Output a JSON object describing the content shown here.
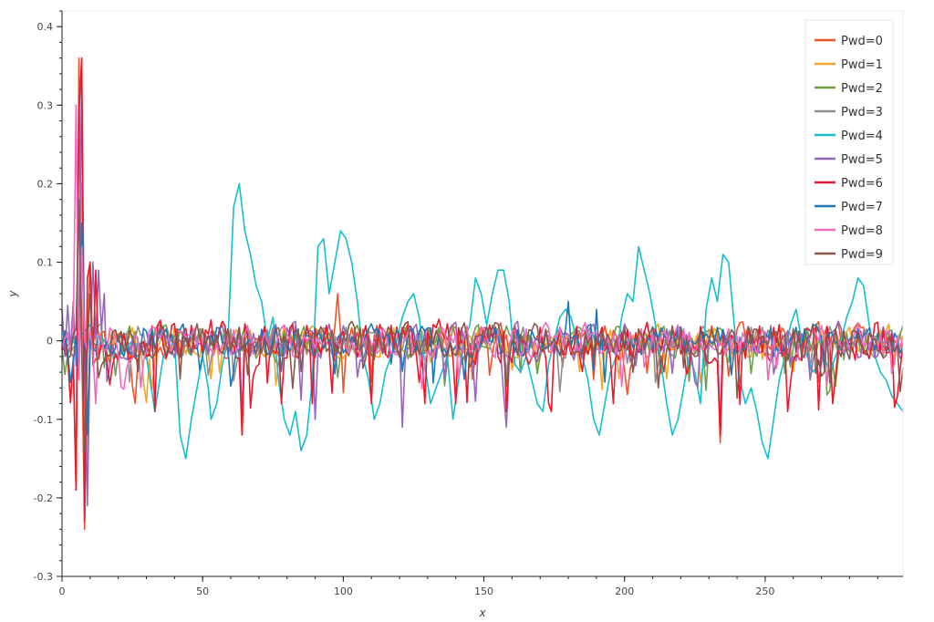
{
  "chart_data": {
    "type": "line",
    "title": "",
    "xlabel": "x",
    "ylabel": "y",
    "xlim": [
      0,
      299
    ],
    "ylim": [
      -0.3,
      0.42
    ],
    "x_ticks": [
      0,
      50,
      100,
      150,
      200,
      250
    ],
    "y_ticks": [
      -0.3,
      -0.2,
      -0.1,
      0,
      0.1,
      0.2,
      0.3,
      0.4
    ],
    "x_tick_labels": [
      "0",
      "50",
      "100",
      "150",
      "200",
      "250"
    ],
    "y_tick_labels": [
      "-0.3",
      "-0.2",
      "-0.1",
      "0",
      "0.1",
      "0.2",
      "0.3",
      "0.4"
    ],
    "grid": false,
    "legend_position": "top-right",
    "legend": [
      "Pwd=0",
      "Pwd=1",
      "Pwd=2",
      "Pwd=3",
      "Pwd=4",
      "Pwd=5",
      "Pwd=6",
      "Pwd=7",
      "Pwd=8",
      "Pwd=9"
    ],
    "series": [
      {
        "name": "Pwd=0",
        "color": "#f0522a",
        "kind": "noise",
        "amp": 0.02,
        "seed": 11,
        "spikes": [
          [
            6,
            0.36
          ],
          [
            8,
            -0.24
          ],
          [
            5,
            -0.19
          ],
          [
            10,
            0.1
          ],
          [
            64,
            -0.12
          ],
          [
            234,
            -0.13
          ],
          [
            98,
            0.06
          ]
        ]
      },
      {
        "name": "Pwd=1",
        "color": "#f5a623",
        "kind": "noise",
        "amp": 0.018,
        "seed": 23,
        "spikes": [
          [
            7,
            0.2
          ],
          [
            9,
            -0.15
          ]
        ]
      },
      {
        "name": "Pwd=2",
        "color": "#6ba04a",
        "kind": "noise",
        "amp": 0.018,
        "seed": 37,
        "spikes": [
          [
            7,
            0.15
          ],
          [
            9,
            -0.12
          ]
        ]
      },
      {
        "name": "Pwd=3",
        "color": "#8f8f8f",
        "kind": "noise",
        "amp": 0.018,
        "seed": 41,
        "spikes": [
          [
            7,
            0.12
          ],
          [
            9,
            -0.1
          ]
        ]
      },
      {
        "name": "Pwd=4",
        "color": "#17becf",
        "kind": "smooth",
        "points": [
          [
            0,
            -0.01
          ],
          [
            5,
            0.0
          ],
          [
            10,
            0.02
          ],
          [
            15,
            0.0
          ],
          [
            20,
            -0.02
          ],
          [
            25,
            0.0
          ],
          [
            30,
            -0.02
          ],
          [
            33,
            -0.09
          ],
          [
            36,
            -0.02
          ],
          [
            40,
            0.0
          ],
          [
            42,
            -0.12
          ],
          [
            44,
            -0.15
          ],
          [
            46,
            -0.1
          ],
          [
            48,
            -0.06
          ],
          [
            50,
            -0.02
          ],
          [
            52,
            -0.06
          ],
          [
            53,
            -0.1
          ],
          [
            55,
            -0.08
          ],
          [
            57,
            -0.03
          ],
          [
            59,
            0.0
          ],
          [
            61,
            0.17
          ],
          [
            63,
            0.2
          ],
          [
            65,
            0.14
          ],
          [
            67,
            0.11
          ],
          [
            69,
            0.07
          ],
          [
            71,
            0.05
          ],
          [
            73,
            0.0
          ],
          [
            75,
            0.03
          ],
          [
            77,
            -0.05
          ],
          [
            79,
            -0.1
          ],
          [
            81,
            -0.12
          ],
          [
            83,
            -0.09
          ],
          [
            85,
            -0.14
          ],
          [
            87,
            -0.12
          ],
          [
            89,
            -0.05
          ],
          [
            91,
            0.12
          ],
          [
            93,
            0.13
          ],
          [
            95,
            0.06
          ],
          [
            97,
            0.1
          ],
          [
            99,
            0.14
          ],
          [
            101,
            0.13
          ],
          [
            103,
            0.1
          ],
          [
            105,
            0.05
          ],
          [
            107,
            -0.02
          ],
          [
            109,
            -0.05
          ],
          [
            111,
            -0.1
          ],
          [
            113,
            -0.08
          ],
          [
            115,
            -0.04
          ],
          [
            117,
            -0.02
          ],
          [
            119,
            0.0
          ],
          [
            121,
            0.03
          ],
          [
            123,
            0.05
          ],
          [
            125,
            0.06
          ],
          [
            127,
            0.03
          ],
          [
            129,
            -0.03
          ],
          [
            131,
            -0.08
          ],
          [
            133,
            -0.06
          ],
          [
            135,
            -0.04
          ],
          [
            137,
            -0.02
          ],
          [
            139,
            -0.1
          ],
          [
            141,
            -0.05
          ],
          [
            143,
            0.0
          ],
          [
            145,
            0.02
          ],
          [
            147,
            0.08
          ],
          [
            149,
            0.06
          ],
          [
            151,
            0.02
          ],
          [
            153,
            0.06
          ],
          [
            155,
            0.09
          ],
          [
            157,
            0.09
          ],
          [
            159,
            0.05
          ],
          [
            161,
            -0.03
          ],
          [
            163,
            -0.04
          ],
          [
            165,
            -0.02
          ],
          [
            167,
            -0.05
          ],
          [
            169,
            -0.08
          ],
          [
            171,
            -0.09
          ],
          [
            173,
            -0.03
          ],
          [
            175,
            0.0
          ],
          [
            177,
            0.03
          ],
          [
            179,
            0.04
          ],
          [
            181,
            0.03
          ],
          [
            183,
            0.0
          ],
          [
            185,
            -0.02
          ],
          [
            187,
            -0.05
          ],
          [
            189,
            -0.1
          ],
          [
            191,
            -0.12
          ],
          [
            193,
            -0.08
          ],
          [
            195,
            -0.04
          ],
          [
            197,
            -0.02
          ],
          [
            199,
            0.03
          ],
          [
            201,
            0.06
          ],
          [
            203,
            0.05
          ],
          [
            205,
            0.12
          ],
          [
            207,
            0.09
          ],
          [
            209,
            0.06
          ],
          [
            211,
            0.02
          ],
          [
            213,
            -0.03
          ],
          [
            215,
            -0.08
          ],
          [
            217,
            -0.12
          ],
          [
            219,
            -0.1
          ],
          [
            221,
            -0.06
          ],
          [
            223,
            -0.02
          ],
          [
            225,
            -0.04
          ],
          [
            227,
            -0.08
          ],
          [
            229,
            0.04
          ],
          [
            231,
            0.08
          ],
          [
            233,
            0.05
          ],
          [
            235,
            0.11
          ],
          [
            237,
            0.1
          ],
          [
            239,
            0.02
          ],
          [
            241,
            -0.05
          ],
          [
            243,
            -0.08
          ],
          [
            245,
            -0.06
          ],
          [
            247,
            -0.09
          ],
          [
            249,
            -0.13
          ],
          [
            251,
            -0.15
          ],
          [
            253,
            -0.1
          ],
          [
            255,
            -0.05
          ],
          [
            257,
            -0.02
          ],
          [
            259,
            0.02
          ],
          [
            261,
            0.04
          ],
          [
            263,
            0.0
          ],
          [
            265,
            -0.02
          ],
          [
            267,
            -0.04
          ],
          [
            269,
            -0.03
          ],
          [
            271,
            -0.02
          ],
          [
            273,
            -0.04
          ],
          [
            275,
            -0.02
          ],
          [
            277,
            0.0
          ],
          [
            279,
            0.03
          ],
          [
            281,
            0.05
          ],
          [
            283,
            0.08
          ],
          [
            285,
            0.07
          ],
          [
            287,
            0.02
          ],
          [
            289,
            -0.02
          ],
          [
            291,
            -0.04
          ],
          [
            293,
            -0.05
          ],
          [
            295,
            -0.07
          ],
          [
            297,
            -0.08
          ],
          [
            299,
            -0.09
          ]
        ]
      },
      {
        "name": "Pwd=5",
        "color": "#9467bd",
        "kind": "noise",
        "amp": 0.022,
        "seed": 53,
        "spikes": [
          [
            0,
            0.04
          ],
          [
            2,
            0.045
          ],
          [
            4,
            0.05
          ],
          [
            7,
            0.35
          ],
          [
            9,
            -0.21
          ],
          [
            11,
            0.1
          ],
          [
            13,
            0.09
          ],
          [
            15,
            0.06
          ],
          [
            64,
            -0.1
          ],
          [
            234,
            -0.11
          ],
          [
            158,
            -0.11
          ],
          [
            121,
            -0.11
          ],
          [
            90,
            -0.1
          ]
        ]
      },
      {
        "name": "Pwd=6",
        "color": "#e8192c",
        "kind": "noise",
        "amp": 0.025,
        "seed": 67,
        "spikes": [
          [
            5,
            -0.19
          ],
          [
            6,
            0.29
          ],
          [
            7,
            0.36
          ],
          [
            8,
            -0.23
          ],
          [
            9,
            0.08
          ],
          [
            10,
            0.1
          ],
          [
            12,
            0.09
          ],
          [
            33,
            -0.09
          ],
          [
            64,
            -0.12
          ],
          [
            78,
            -0.08
          ],
          [
            89,
            -0.08
          ],
          [
            110,
            -0.08
          ],
          [
            129,
            -0.08
          ],
          [
            140,
            -0.08
          ],
          [
            158,
            -0.09
          ],
          [
            174,
            -0.09
          ],
          [
            196,
            -0.08
          ],
          [
            234,
            -0.12
          ],
          [
            258,
            -0.09
          ],
          [
            274,
            -0.08
          ]
        ]
      },
      {
        "name": "Pwd=7",
        "color": "#1f77b4",
        "kind": "noise",
        "amp": 0.018,
        "seed": 79,
        "spikes": [
          [
            7,
            0.15
          ],
          [
            9,
            -0.12
          ],
          [
            190,
            0.04
          ],
          [
            180,
            0.05
          ]
        ]
      },
      {
        "name": "Pwd=8",
        "color": "#f06bbf",
        "kind": "noise",
        "amp": 0.02,
        "seed": 83,
        "spikes": [
          [
            5,
            0.3
          ],
          [
            6,
            -0.05
          ],
          [
            7,
            0.12
          ],
          [
            12,
            -0.08
          ],
          [
            14,
            0.0
          ]
        ]
      },
      {
        "name": "Pwd=9",
        "color": "#8c564b",
        "kind": "noise",
        "amp": 0.02,
        "seed": 97,
        "spikes": [
          [
            6,
            0.18
          ],
          [
            8,
            -0.14
          ],
          [
            10,
            0.06
          ]
        ]
      }
    ]
  }
}
